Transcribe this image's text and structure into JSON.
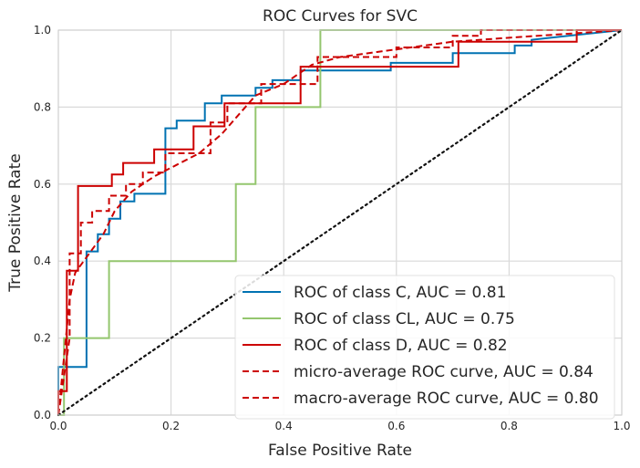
{
  "chart_data": {
    "type": "line",
    "title": "ROC Curves for SVC",
    "xlabel": "False Positive Rate",
    "ylabel": "True Positive Rate",
    "xlim": [
      0,
      1
    ],
    "ylim": [
      0,
      1
    ],
    "xticks": [
      "0.0",
      "0.2",
      "0.4",
      "0.6",
      "0.8",
      "1.0"
    ],
    "yticks": [
      "0.0",
      "0.2",
      "0.4",
      "0.6",
      "0.8",
      "1.0"
    ],
    "grid": true,
    "legend_position": "lower-right",
    "series": [
      {
        "name": "ROC of class C, AUC = 0.81",
        "color": "#0072b2",
        "dash": "solid",
        "x": [
          0,
          0,
          0.05,
          0.05,
          0.07,
          0.07,
          0.09,
          0.09,
          0.11,
          0.11,
          0.135,
          0.135,
          0.19,
          0.19,
          0.21,
          0.21,
          0.26,
          0.26,
          0.29,
          0.29,
          0.31,
          0.31,
          0.35,
          0.35,
          0.38,
          0.38,
          0.43,
          0.43,
          0.59,
          0.59,
          0.7,
          0.7,
          0.81,
          0.81,
          0.84,
          0.84,
          1
        ],
        "y": [
          0,
          0.125,
          0.125,
          0.425,
          0.425,
          0.47,
          0.47,
          0.51,
          0.51,
          0.555,
          0.555,
          0.575,
          0.575,
          0.745,
          0.745,
          0.765,
          0.765,
          0.81,
          0.81,
          0.83,
          0.83,
          0.83,
          0.83,
          0.85,
          0.85,
          0.87,
          0.87,
          0.895,
          0.895,
          0.915,
          0.915,
          0.94,
          0.94,
          0.96,
          0.96,
          0.975,
          1
        ]
      },
      {
        "name": "ROC of class CL, AUC = 0.75",
        "color": "#94c66e",
        "dash": "solid",
        "x": [
          0,
          0.01,
          0.01,
          0.09,
          0.09,
          0.315,
          0.315,
          0.35,
          0.35,
          0.465,
          0.465,
          1
        ],
        "y": [
          0,
          0,
          0.2,
          0.2,
          0.4,
          0.4,
          0.6,
          0.6,
          0.8,
          0.8,
          1.0,
          1.0
        ]
      },
      {
        "name": "ROC of class D, AUC = 0.82",
        "color": "#cc0000",
        "dash": "solid",
        "x": [
          0,
          0,
          0.015,
          0.015,
          0.035,
          0.035,
          0.095,
          0.095,
          0.115,
          0.115,
          0.17,
          0.17,
          0.24,
          0.24,
          0.295,
          0.295,
          0.43,
          0.43,
          0.71,
          0.71,
          0.92,
          0.92,
          1
        ],
        "y": [
          0,
          0.062,
          0.062,
          0.375,
          0.375,
          0.595,
          0.595,
          0.625,
          0.625,
          0.655,
          0.655,
          0.69,
          0.69,
          0.75,
          0.75,
          0.81,
          0.81,
          0.905,
          0.905,
          0.97,
          0.97,
          1.0,
          1.0
        ]
      },
      {
        "name": "micro-average ROC curve, AUC = 0.84",
        "color": "#cc0000",
        "dash": "dashed",
        "x": [
          0,
          0.01,
          0.02,
          0.03,
          0.05,
          0.08,
          0.1,
          0.13,
          0.17,
          0.21,
          0.25,
          0.29,
          0.35,
          0.4,
          0.45,
          0.5,
          0.6,
          0.7,
          0.8,
          0.9,
          1
        ],
        "y": [
          0,
          0.15,
          0.3,
          0.37,
          0.41,
          0.47,
          0.53,
          0.58,
          0.62,
          0.65,
          0.68,
          0.73,
          0.83,
          0.86,
          0.91,
          0.93,
          0.95,
          0.97,
          0.98,
          0.99,
          1.0
        ]
      },
      {
        "name": "macro-average ROC curve, AUC = 0.80",
        "color": "#cc0000",
        "dash": "dashed",
        "x": [
          0,
          0.02,
          0.02,
          0.04,
          0.04,
          0.06,
          0.06,
          0.09,
          0.09,
          0.12,
          0.12,
          0.15,
          0.15,
          0.19,
          0.19,
          0.27,
          0.27,
          0.3,
          0.3,
          0.36,
          0.36,
          0.46,
          0.46,
          0.6,
          0.6,
          0.7,
          0.7,
          0.75,
          0.75,
          1
        ],
        "y": [
          0,
          0.2,
          0.42,
          0.42,
          0.5,
          0.5,
          0.53,
          0.53,
          0.57,
          0.57,
          0.6,
          0.6,
          0.63,
          0.63,
          0.68,
          0.68,
          0.76,
          0.76,
          0.81,
          0.81,
          0.86,
          0.86,
          0.93,
          0.93,
          0.955,
          0.955,
          0.985,
          0.985,
          1.0,
          1.0
        ]
      },
      {
        "name": "",
        "color": "#111111",
        "dash": "dotted",
        "x": [
          0,
          1
        ],
        "y": [
          0,
          1
        ]
      }
    ]
  }
}
